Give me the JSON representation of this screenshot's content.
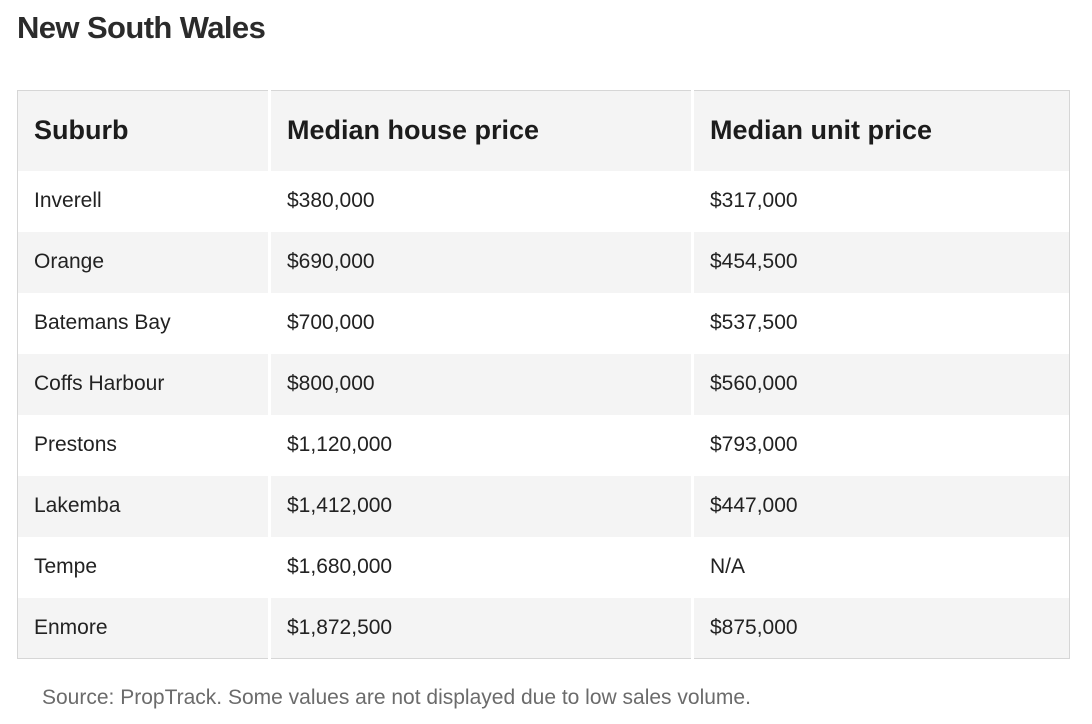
{
  "title": "New South Wales",
  "table": {
    "headers": [
      "Suburb",
      "Median house price",
      "Median unit price"
    ],
    "rows": [
      [
        "Inverell",
        "$380,000",
        "$317,000"
      ],
      [
        "Orange",
        "$690,000",
        "$454,500"
      ],
      [
        "Batemans Bay",
        "$700,000",
        "$537,500"
      ],
      [
        "Coffs Harbour",
        "$800,000",
        "$560,000"
      ],
      [
        "Prestons",
        "$1,120,000",
        "$793,000"
      ],
      [
        "Lakemba",
        "$1,412,000",
        "$447,000"
      ],
      [
        "Tempe",
        "$1,680,000",
        "N/A"
      ],
      [
        "Enmore",
        "$1,872,500",
        "$875,000"
      ]
    ]
  },
  "source": "Source: PropTrack. Some values are not displayed due to low sales volume."
}
